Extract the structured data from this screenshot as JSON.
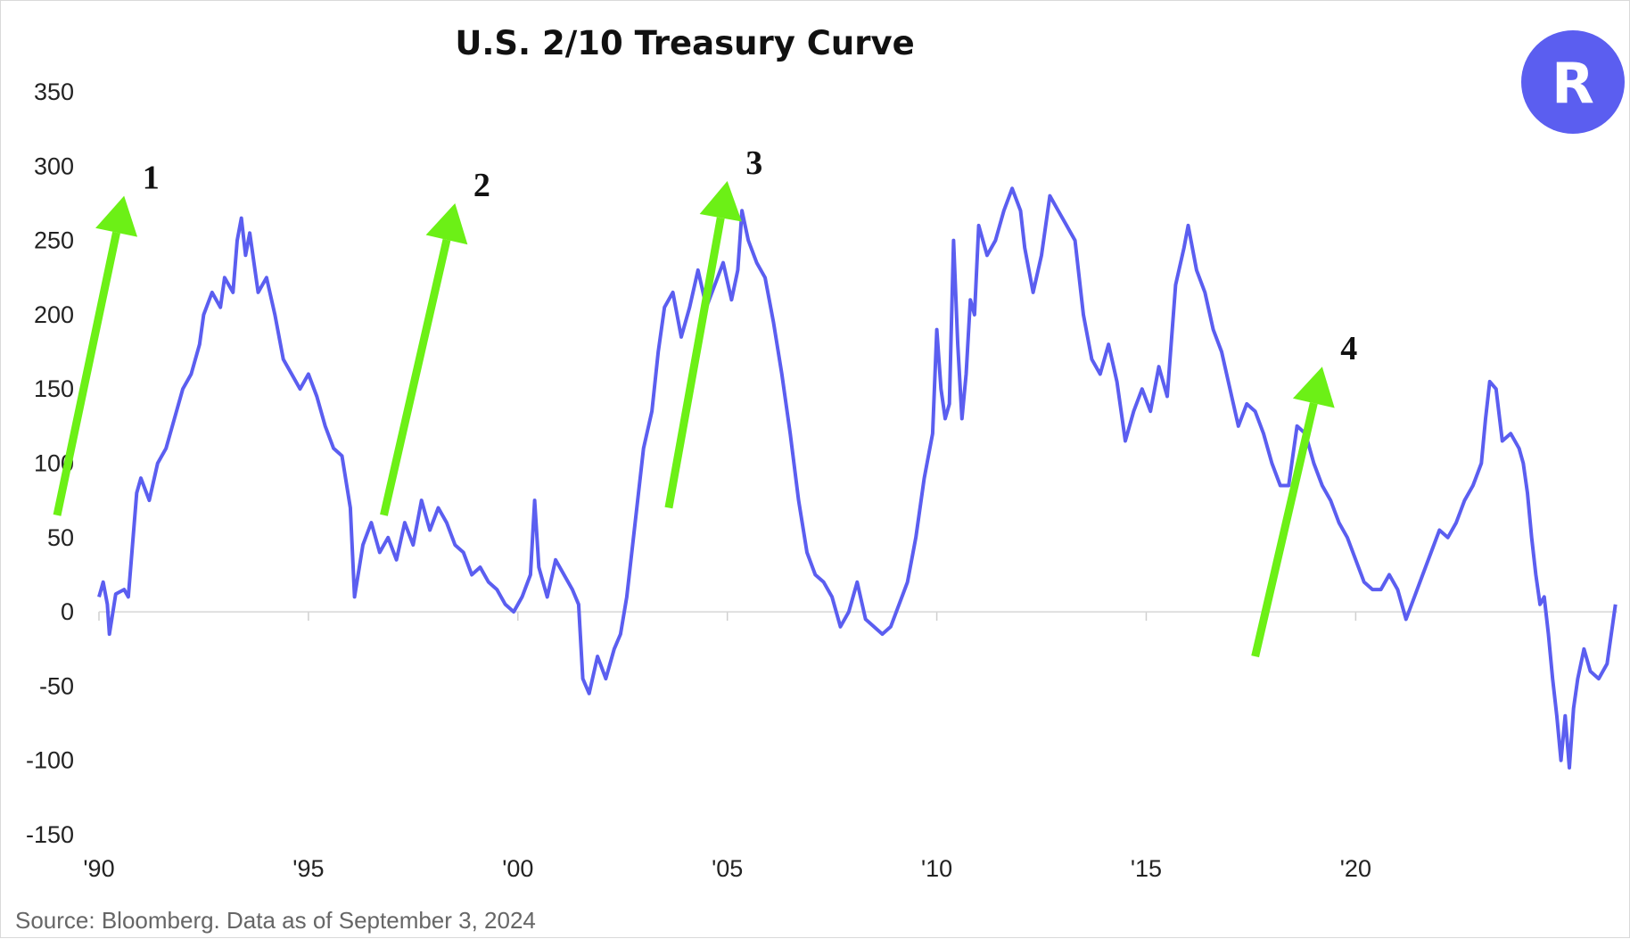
{
  "chart_data": {
    "type": "line",
    "title": "U.S. 2/10 Treasury Curve",
    "xlabel": "",
    "ylabel": "",
    "x_range": [
      1990.0,
      2024.7
    ],
    "ylim": [
      -150,
      350
    ],
    "y_ticks": [
      "350",
      "300",
      "250",
      "200",
      "150",
      "100",
      "50",
      "0",
      "-50",
      "-100",
      "-150"
    ],
    "x_ticks": [
      {
        "label": "'90",
        "value": 1990
      },
      {
        "label": "'95",
        "value": 1995
      },
      {
        "label": "'00",
        "value": 2000
      },
      {
        "label": "'05",
        "value": 2005
      },
      {
        "label": "'10",
        "value": 2010
      },
      {
        "label": "'15",
        "value": 2015
      },
      {
        "label": "'20",
        "value": 2020
      }
    ],
    "grid": "x-axis minor ticks only",
    "series": [
      {
        "color": "#5b5ef0",
        "points": [
          [
            1990.0,
            10
          ],
          [
            1990.1,
            20
          ],
          [
            1990.2,
            5
          ],
          [
            1990.25,
            -15
          ],
          [
            1990.4,
            12
          ],
          [
            1990.6,
            15
          ],
          [
            1990.7,
            10
          ],
          [
            1990.9,
            80
          ],
          [
            1991.0,
            90
          ],
          [
            1991.2,
            75
          ],
          [
            1991.4,
            100
          ],
          [
            1991.6,
            110
          ],
          [
            1991.8,
            130
          ],
          [
            1992.0,
            150
          ],
          [
            1992.2,
            160
          ],
          [
            1992.4,
            180
          ],
          [
            1992.5,
            200
          ],
          [
            1992.7,
            215
          ],
          [
            1992.9,
            205
          ],
          [
            1993.0,
            225
          ],
          [
            1993.2,
            215
          ],
          [
            1993.3,
            250
          ],
          [
            1993.4,
            265
          ],
          [
            1993.5,
            240
          ],
          [
            1993.6,
            255
          ],
          [
            1993.8,
            215
          ],
          [
            1994.0,
            225
          ],
          [
            1994.2,
            200
          ],
          [
            1994.4,
            170
          ],
          [
            1994.6,
            160
          ],
          [
            1994.8,
            150
          ],
          [
            1995.0,
            160
          ],
          [
            1995.2,
            145
          ],
          [
            1995.4,
            125
          ],
          [
            1995.6,
            110
          ],
          [
            1995.8,
            105
          ],
          [
            1996.0,
            70
          ],
          [
            1996.1,
            10
          ],
          [
            1996.3,
            45
          ],
          [
            1996.5,
            60
          ],
          [
            1996.7,
            40
          ],
          [
            1996.9,
            50
          ],
          [
            1997.1,
            35
          ],
          [
            1997.3,
            60
          ],
          [
            1997.5,
            45
          ],
          [
            1997.7,
            75
          ],
          [
            1997.9,
            55
          ],
          [
            1998.1,
            70
          ],
          [
            1998.3,
            60
          ],
          [
            1998.5,
            45
          ],
          [
            1998.7,
            40
          ],
          [
            1998.9,
            25
          ],
          [
            1999.1,
            30
          ],
          [
            1999.3,
            20
          ],
          [
            1999.5,
            15
          ],
          [
            1999.7,
            5
          ],
          [
            1999.9,
            0
          ],
          [
            2000.1,
            10
          ],
          [
            2000.3,
            25
          ],
          [
            2000.4,
            75
          ],
          [
            2000.5,
            30
          ],
          [
            2000.7,
            10
          ],
          [
            2000.9,
            35
          ],
          [
            2001.1,
            25
          ],
          [
            2001.3,
            15
          ],
          [
            2001.45,
            5
          ],
          [
            2001.55,
            -45
          ],
          [
            2001.7,
            -55
          ],
          [
            2001.9,
            -30
          ],
          [
            2002.1,
            -45
          ],
          [
            2002.3,
            -25
          ],
          [
            2002.45,
            -15
          ],
          [
            2002.6,
            10
          ],
          [
            2002.8,
            60
          ],
          [
            2003.0,
            110
          ],
          [
            2003.2,
            135
          ],
          [
            2003.35,
            175
          ],
          [
            2003.5,
            205
          ],
          [
            2003.7,
            215
          ],
          [
            2003.9,
            185
          ],
          [
            2004.1,
            205
          ],
          [
            2004.3,
            230
          ],
          [
            2004.5,
            205
          ],
          [
            2004.7,
            220
          ],
          [
            2004.9,
            235
          ],
          [
            2005.1,
            210
          ],
          [
            2005.25,
            230
          ],
          [
            2005.35,
            270
          ],
          [
            2005.5,
            250
          ],
          [
            2005.7,
            235
          ],
          [
            2005.9,
            225
          ],
          [
            2006.1,
            195
          ],
          [
            2006.3,
            160
          ],
          [
            2006.5,
            120
          ],
          [
            2006.7,
            75
          ],
          [
            2006.9,
            40
          ],
          [
            2007.1,
            25
          ],
          [
            2007.3,
            20
          ],
          [
            2007.5,
            10
          ],
          [
            2007.7,
            -10
          ],
          [
            2007.9,
            0
          ],
          [
            2008.1,
            20
          ],
          [
            2008.3,
            -5
          ],
          [
            2008.5,
            -10
          ],
          [
            2008.7,
            -15
          ],
          [
            2008.9,
            -10
          ],
          [
            2009.1,
            5
          ],
          [
            2009.3,
            20
          ],
          [
            2009.5,
            50
          ],
          [
            2009.7,
            90
          ],
          [
            2009.9,
            120
          ],
          [
            2010.0,
            190
          ],
          [
            2010.1,
            150
          ],
          [
            2010.2,
            130
          ],
          [
            2010.3,
            140
          ],
          [
            2010.4,
            250
          ],
          [
            2010.5,
            180
          ],
          [
            2010.6,
            130
          ],
          [
            2010.7,
            160
          ],
          [
            2010.8,
            210
          ],
          [
            2010.9,
            200
          ],
          [
            2011.0,
            260
          ],
          [
            2011.2,
            240
          ],
          [
            2011.4,
            250
          ],
          [
            2011.6,
            270
          ],
          [
            2011.8,
            285
          ],
          [
            2012.0,
            270
          ],
          [
            2012.1,
            245
          ],
          [
            2012.3,
            215
          ],
          [
            2012.5,
            240
          ],
          [
            2012.7,
            280
          ],
          [
            2012.9,
            270
          ],
          [
            2013.1,
            260
          ],
          [
            2013.3,
            250
          ],
          [
            2013.5,
            200
          ],
          [
            2013.7,
            170
          ],
          [
            2013.9,
            160
          ],
          [
            2014.1,
            180
          ],
          [
            2014.3,
            155
          ],
          [
            2014.5,
            115
          ],
          [
            2014.7,
            135
          ],
          [
            2014.9,
            150
          ],
          [
            2015.1,
            135
          ],
          [
            2015.3,
            165
          ],
          [
            2015.5,
            145
          ],
          [
            2015.7,
            220
          ],
          [
            2015.9,
            245
          ],
          [
            2016.0,
            260
          ],
          [
            2016.2,
            230
          ],
          [
            2016.4,
            215
          ],
          [
            2016.6,
            190
          ],
          [
            2016.8,
            175
          ],
          [
            2017.0,
            150
          ],
          [
            2017.2,
            125
          ],
          [
            2017.4,
            140
          ],
          [
            2017.6,
            135
          ],
          [
            2017.8,
            120
          ],
          [
            2018.0,
            100
          ],
          [
            2018.2,
            85
          ],
          [
            2018.4,
            85
          ],
          [
            2018.6,
            125
          ],
          [
            2018.8,
            120
          ],
          [
            2019.0,
            100
          ],
          [
            2019.2,
            85
          ],
          [
            2019.4,
            75
          ],
          [
            2019.6,
            60
          ],
          [
            2019.8,
            50
          ],
          [
            2020.0,
            35
          ],
          [
            2020.2,
            20
          ],
          [
            2020.4,
            15
          ],
          [
            2020.6,
            15
          ],
          [
            2020.8,
            25
          ],
          [
            2021.0,
            15
          ],
          [
            2021.2,
            -5
          ],
          [
            2021.4,
            10
          ],
          [
            2021.6,
            25
          ],
          [
            2021.8,
            40
          ],
          [
            2022.0,
            55
          ],
          [
            2022.2,
            50
          ],
          [
            2022.4,
            60
          ],
          [
            2022.6,
            75
          ],
          [
            2022.8,
            85
          ],
          [
            2023.0,
            100
          ],
          [
            2023.1,
            130
          ],
          [
            2023.2,
            155
          ],
          [
            2023.35,
            150
          ],
          [
            2023.5,
            115
          ],
          [
            2023.7,
            120
          ],
          [
            2023.9,
            110
          ],
          [
            2024.0,
            100
          ],
          [
            2024.1,
            80
          ],
          [
            2024.2,
            50
          ],
          [
            2024.3,
            25
          ],
          [
            2024.4,
            5
          ],
          [
            2024.5,
            10
          ],
          [
            2024.6,
            -15
          ],
          [
            2024.7,
            -45
          ],
          [
            2024.8,
            -70
          ],
          [
            2024.9,
            -100
          ],
          [
            2025.0,
            -70
          ],
          [
            2025.1,
            -105
          ],
          [
            2025.2,
            -65
          ],
          [
            2025.3,
            -45
          ],
          [
            2025.45,
            -25
          ],
          [
            2025.6,
            -40
          ],
          [
            2025.8,
            -45
          ],
          [
            2026.0,
            -35
          ],
          [
            2026.1,
            -15
          ],
          [
            2026.2,
            5
          ]
        ]
      }
    ],
    "annotations": [
      {
        "label": "1",
        "arrow_from": [
          1989.0,
          65
        ],
        "arrow_to": [
          1990.6,
          280
        ]
      },
      {
        "label": "2",
        "arrow_from": [
          1996.8,
          65
        ],
        "arrow_to": [
          1998.5,
          275
        ]
      },
      {
        "label": "3",
        "arrow_from": [
          2003.6,
          70
        ],
        "arrow_to": [
          2005.0,
          290
        ]
      },
      {
        "label": "4",
        "arrow_from": [
          2017.6,
          -30
        ],
        "arrow_to": [
          2019.2,
          165
        ]
      }
    ]
  },
  "source_note": "Source: Bloomberg. Data as of September 3, 2024",
  "logo": {
    "letter": "R",
    "color": "#5b5ef0"
  }
}
